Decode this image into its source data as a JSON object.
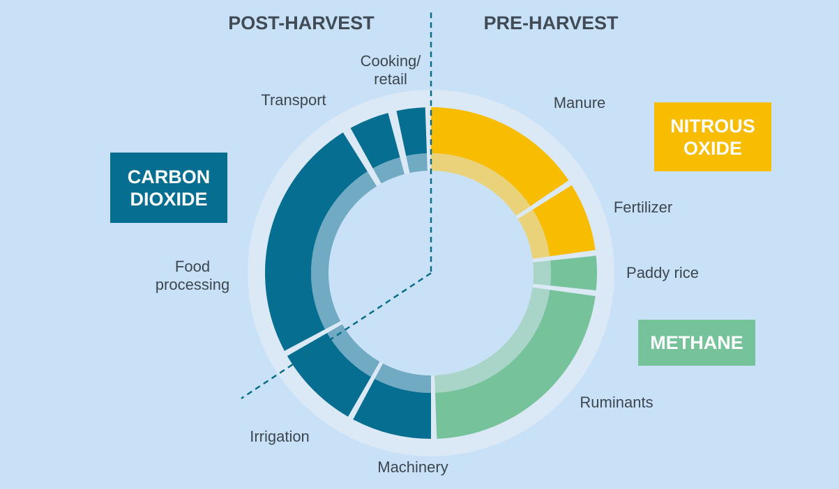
{
  "chart_data": {
    "type": "pie",
    "variant": "donut",
    "title": "",
    "sections": {
      "left": "POST-HARVEST",
      "right": "PRE-HARVEST"
    },
    "slices": [
      {
        "label": "Manure",
        "gas": "NITROUS OXIDE",
        "start": 0,
        "end": 56
      },
      {
        "label": "Fertilizer",
        "gas": "NITROUS OXIDE",
        "start": 58,
        "end": 82
      },
      {
        "label": "Paddy rice",
        "gas": "METHANE",
        "start": 84,
        "end": 96
      },
      {
        "label": "Ruminants",
        "gas": "METHANE",
        "start": 98,
        "end": 178
      },
      {
        "label": "Machinery",
        "gas": "CARBON DIOXIDE",
        "start": 180,
        "end": 208
      },
      {
        "label": "Irrigation",
        "gas": "CARBON DIOXIDE",
        "start": 210,
        "end": 240
      },
      {
        "label": "Food processing",
        "gas": "CARBON DIOXIDE",
        "start": 242,
        "end": 328
      },
      {
        "label": "Transport",
        "gas": "CARBON DIOXIDE",
        "start": 331,
        "end": 345
      },
      {
        "label": "Cooking/ retail",
        "gas": "CARBON DIOXIDE",
        "start": 348,
        "end": 358
      }
    ],
    "gases": [
      {
        "name": "NITROUS OXIDE",
        "lines": [
          "NITROUS",
          "OXIDE"
        ],
        "color": "#f8bc00"
      },
      {
        "name": "METHANE",
        "lines": [
          "METHANE"
        ],
        "color": "#76c29a"
      },
      {
        "name": "CARBON DIOXIDE",
        "lines": [
          "CARBON",
          "DIOXIDE"
        ],
        "color": "#056e91"
      }
    ]
  }
}
